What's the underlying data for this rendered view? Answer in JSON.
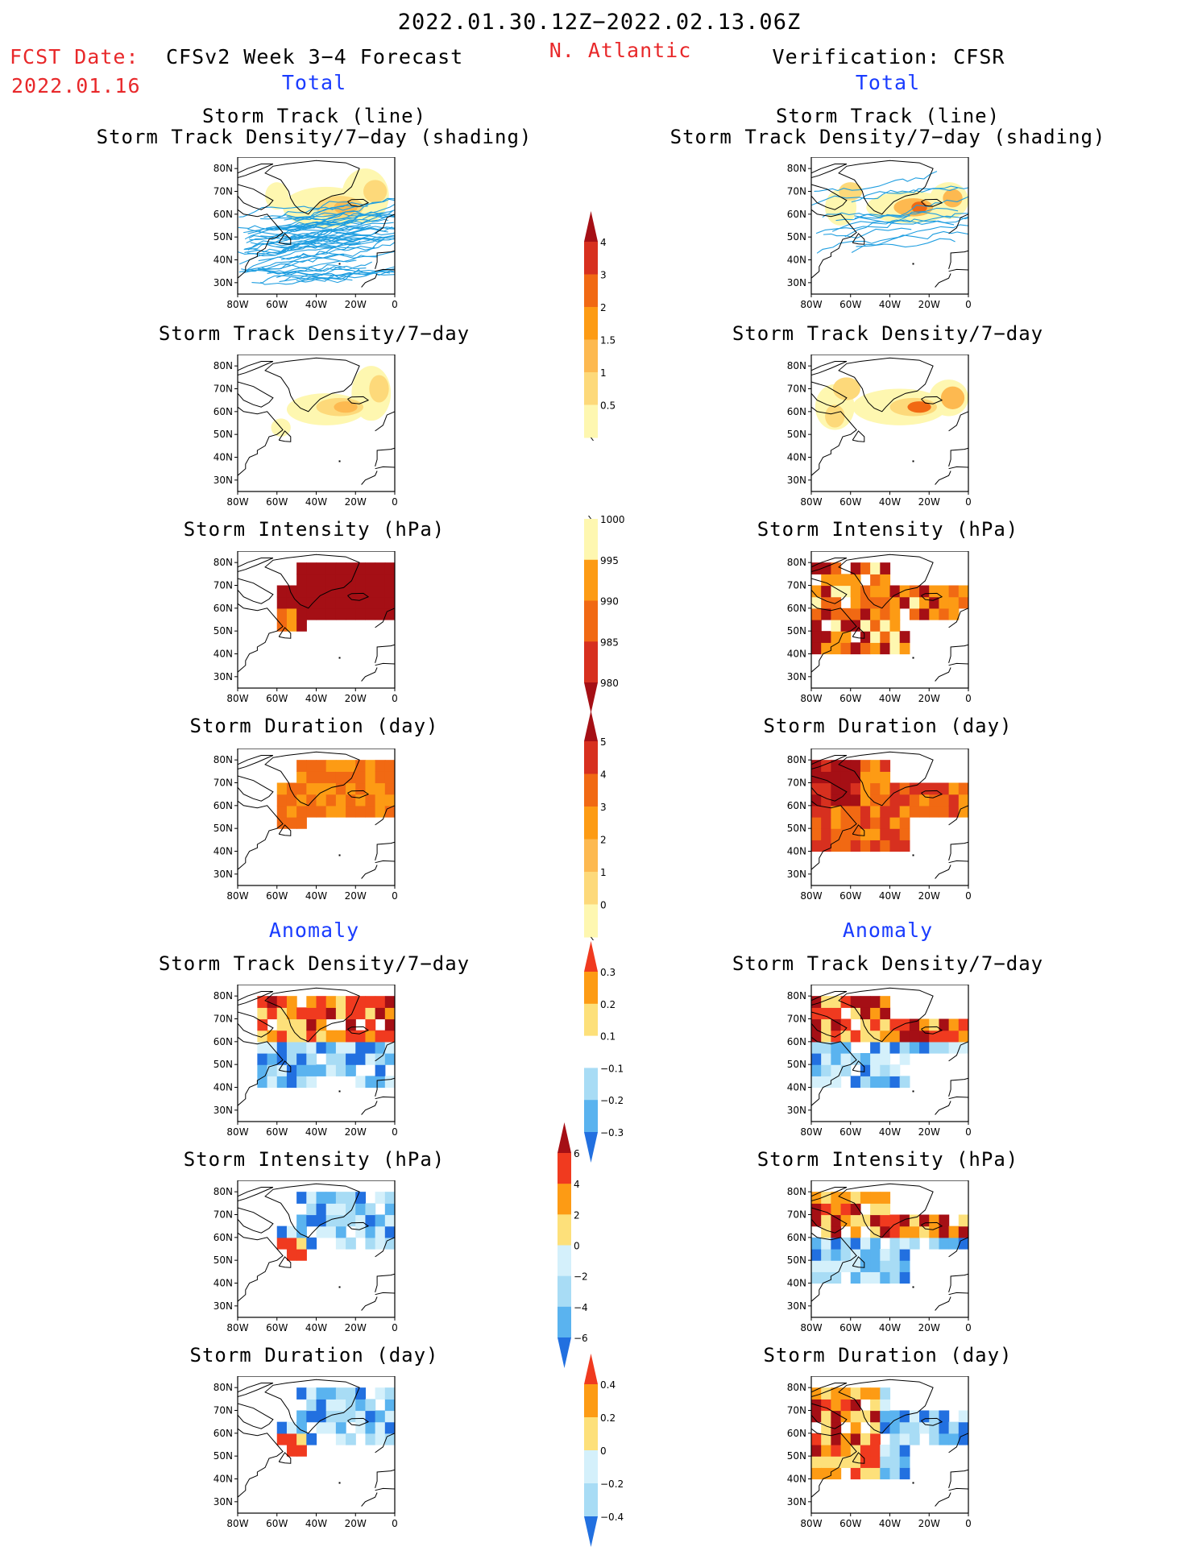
{
  "header": {
    "period": "2022.01.30.12Z−2022.02.13.06Z",
    "fcst_label": "FCST Date:",
    "fcst_date": "2022.01.16",
    "model": "CFSv2 Week 3−4 Forecast",
    "region": "N. Atlantic",
    "verification": "Verification: CFSR"
  },
  "sections": {
    "total": "Total",
    "anomaly": "Anomaly"
  },
  "titles": {
    "track_line": "Storm Track (line)",
    "track_density_shading": "Storm Track Density/7−day (shading)",
    "track_density": "Storm Track Density/7−day",
    "intensity": "Storm Intensity (hPa)",
    "duration": "Storm Duration (day)"
  },
  "axes": {
    "lat_labels": [
      "80N",
      "70N",
      "60N",
      "50N",
      "40N",
      "30N"
    ],
    "lon_labels": [
      "80W",
      "60W",
      "40W",
      "20W",
      "0"
    ]
  },
  "colorbars": {
    "density": {
      "labels": [
        "4",
        "3",
        "2",
        "1.5",
        "1",
        "0.5"
      ],
      "colors": [
        "#a50f15",
        "#d7301f",
        "#f16913",
        "#fd9b14",
        "#fdb950",
        "#fdd97a",
        "#fef7b0"
      ]
    },
    "intensity": {
      "labels": [
        "1000",
        "995",
        "990",
        "985",
        "980"
      ],
      "colors": [
        "#fef7b0",
        "#fd9b14",
        "#f16913",
        "#d7301f",
        "#a50f15"
      ]
    },
    "duration": {
      "labels": [
        "5",
        "4",
        "3",
        "2",
        "1",
        "0"
      ],
      "colors": [
        "#a50f15",
        "#d7301f",
        "#f16913",
        "#fd9b14",
        "#fdb950",
        "#fdd97a",
        "#fef7b0"
      ]
    },
    "density_anom": {
      "labels": [
        "0.3",
        "0.2",
        "0.1",
        "−0.1",
        "−0.2",
        "−0.3"
      ],
      "colors": [
        "#f03a1f",
        "#fd9b14",
        "#fde07a",
        "#ffffff",
        "#a8dcf5",
        "#5ab3ef",
        "#2270e0"
      ]
    },
    "intensity_anom": {
      "labels": [
        "6",
        "4",
        "2",
        "0",
        "−2",
        "−4",
        "−6"
      ],
      "colors": [
        "#a50f15",
        "#f03a1f",
        "#fd9b14",
        "#fde07a",
        "#d4f0fb",
        "#a8dcf5",
        "#5ab3ef",
        "#2270e0"
      ]
    },
    "duration_anom": {
      "labels": [
        "0.4",
        "0.2",
        "0",
        "−0.2",
        "−0.4"
      ],
      "colors": [
        "#f03a1f",
        "#fd9b14",
        "#fde07a",
        "#d4f0fb",
        "#a8dcf5",
        "#2270e0"
      ]
    }
  }
}
